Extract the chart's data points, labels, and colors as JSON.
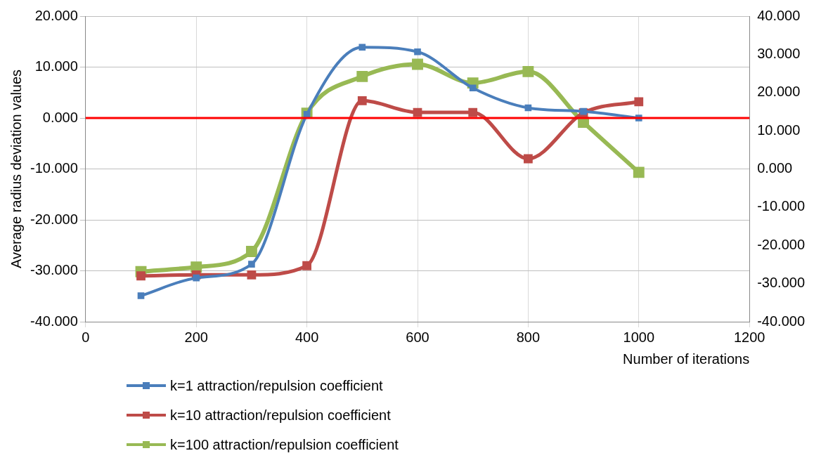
{
  "chart_data": {
    "type": "line",
    "xlabel": "Number of iterations",
    "ylabel": "Average radius deviation values",
    "x": [
      100,
      200,
      300,
      400,
      500,
      600,
      700,
      800,
      900,
      1000
    ],
    "xlim": [
      0,
      1200
    ],
    "xticks": [
      0,
      200,
      400,
      600,
      800,
      1000,
      1200
    ],
    "ylim": [
      -40,
      20
    ],
    "yticks": [
      {
        "value": -40,
        "label": "-40.000"
      },
      {
        "value": -30,
        "label": "-30.000"
      },
      {
        "value": -20,
        "label": "-20.000"
      },
      {
        "value": -10,
        "label": "-10.000"
      },
      {
        "value": 0,
        "label": "0.000"
      },
      {
        "value": 10,
        "label": "10.000"
      },
      {
        "value": 20,
        "label": "20.000"
      }
    ],
    "y2lim": [
      -40,
      40
    ],
    "y2ticks": [
      {
        "value": -40,
        "label": "-40.000"
      },
      {
        "value": -30,
        "label": "-30.000"
      },
      {
        "value": -20,
        "label": "-20.000"
      },
      {
        "value": -10,
        "label": "-10.000"
      },
      {
        "value": 0,
        "label": "0.000"
      },
      {
        "value": 10,
        "label": "10.000"
      },
      {
        "value": 20,
        "label": "20.000"
      },
      {
        "value": 30,
        "label": "30.000"
      },
      {
        "value": 40,
        "label": "40.000"
      }
    ],
    "series": [
      {
        "name": "k=1 attraction/repulsion coefficient",
        "color": "#4a7ebb",
        "values": [
          -34.9,
          -31.4,
          -28.7,
          0.7,
          13.9,
          13.0,
          5.9,
          2.0,
          1.3,
          0
        ]
      },
      {
        "name": "k=10 attraction/repulsion coefficient",
        "color": "#be4b48",
        "values": [
          -31.0,
          -30.8,
          -30.8,
          -29.0,
          3.4,
          1.1,
          1.1,
          -8.0,
          1.0,
          3.2
        ]
      },
      {
        "name": "k=100 attraction/repulsion coefficient",
        "color": "#98b954",
        "axis": "y2",
        "values": [
          -26.9,
          -25.7,
          -21.6,
          14.6,
          24.2,
          27.4,
          22.5,
          25.5,
          12.2,
          -0.9
        ]
      }
    ],
    "ref_lines": [
      {
        "axis": "y",
        "value": 0,
        "color": "#ff0000"
      }
    ],
    "grid": true,
    "legend": "bottom",
    "marker": "square",
    "line_style": "solid"
  }
}
